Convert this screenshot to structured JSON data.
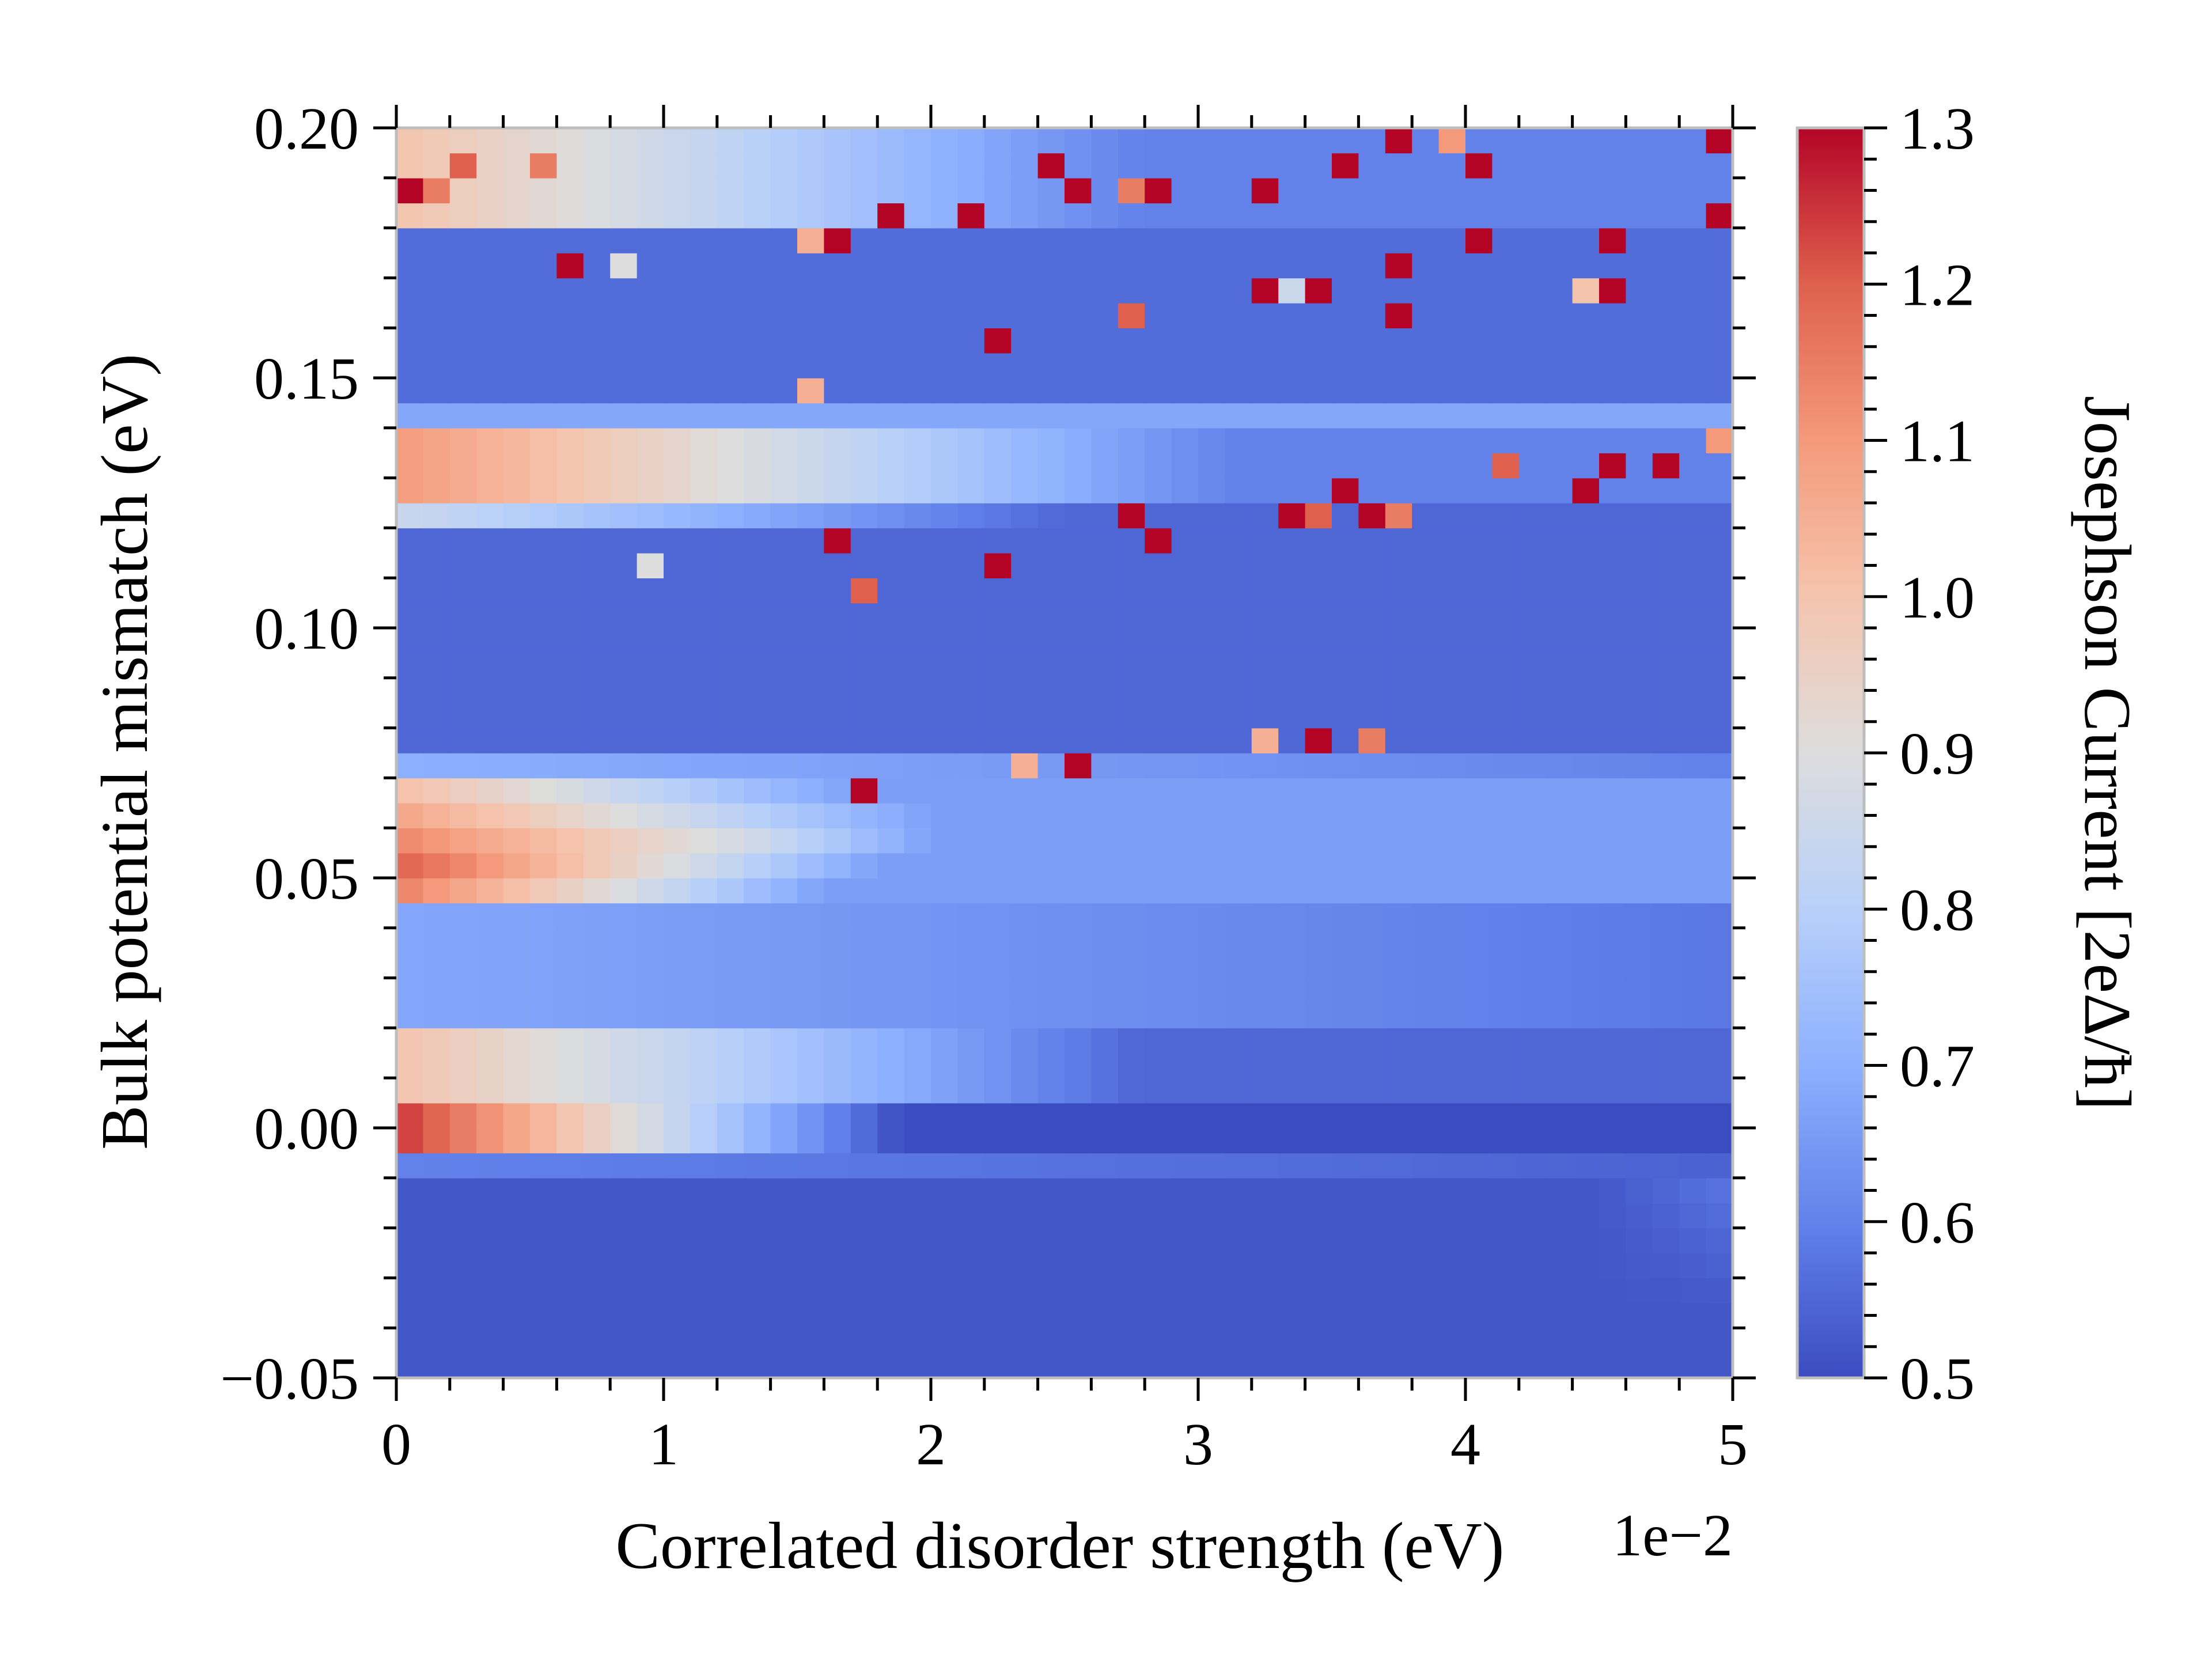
{
  "chart_data": {
    "type": "heatmap",
    "xlabel": "Correlated disorder strength (eV)",
    "x_offset_label": "1e−2",
    "ylabel": "Bulk potential mismatch (eV)",
    "colorbar_label": "Josephson Current [2eΔ/ħ]",
    "colormap": "coolwarm",
    "xlim": [
      0,
      5
    ],
    "ylim": [
      -0.05,
      0.2
    ],
    "clim": [
      0.5,
      1.3
    ],
    "x_ticks": [
      0,
      1,
      2,
      3,
      4,
      5
    ],
    "x_tick_labels": [
      "0",
      "1",
      "2",
      "3",
      "4",
      "5"
    ],
    "y_ticks": [
      -0.05,
      0.0,
      0.05,
      0.1,
      0.15,
      0.2
    ],
    "y_tick_labels": [
      "−0.05",
      "0.00",
      "0.05",
      "0.10",
      "0.15",
      "0.20"
    ],
    "colorbar_ticks": [
      0.5,
      0.6,
      0.7,
      0.8,
      0.9,
      1.0,
      1.1,
      1.2,
      1.3
    ],
    "colorbar_tick_labels": [
      "0.5",
      "0.6",
      "0.7",
      "0.8",
      "0.9",
      "1.0",
      "1.1",
      "1.2",
      "1.3"
    ],
    "grid": false,
    "n_cols": 50,
    "n_rows": 50,
    "z_description": "Josephson current; smooth bands with high-current (red) stripes near y=0.00, y=0.05-0.07, y=0.12-0.14 and y=0.17-0.20, plus scattered high-current spikes at larger disorder",
    "bands": [
      {
        "y_range": [
          -0.05,
          -0.01
        ],
        "value": 0.52
      },
      {
        "y_range": [
          0.0,
          0.005
        ],
        "value_at_x0": 1.3,
        "decay": "fades to 0.55 by x=2.5"
      },
      {
        "y_range": [
          0.005,
          0.02
        ],
        "value_at_x0": 0.95,
        "decay": "fades to 0.6 by x=3"
      },
      {
        "y_range": [
          0.02,
          0.045
        ],
        "value": 0.68
      },
      {
        "y_range": [
          0.045,
          0.075
        ],
        "value_at_x0": 1.2,
        "ridge": "shifts upward with x, fades by x=3"
      },
      {
        "y_range": [
          0.075,
          0.12
        ],
        "value": 0.55
      },
      {
        "y_range": [
          0.12,
          0.14
        ],
        "value_at_x0": 1.2,
        "decay": "fades to 0.65 by x=3"
      },
      {
        "y_range": [
          0.14,
          0.18
        ],
        "value": 0.57
      },
      {
        "y_range": [
          0.18,
          0.2
        ],
        "value_at_x0": 1.1,
        "decay": "fades to 0.65"
      }
    ],
    "spikes": [
      {
        "x": 0.02,
        "y": 0.187,
        "z": 1.3
      },
      {
        "x": 0.1,
        "y": 0.187,
        "z": 1.15
      },
      {
        "x": 0.3,
        "y": 0.193,
        "z": 1.2
      },
      {
        "x": 0.5,
        "y": 0.193,
        "z": 1.15
      },
      {
        "x": 1.5,
        "y": 0.177,
        "z": 1.3
      },
      {
        "x": 1.55,
        "y": 0.177,
        "z": 1.05
      },
      {
        "x": 1.65,
        "y": 0.177,
        "z": 1.3
      },
      {
        "x": 1.85,
        "y": 0.182,
        "z": 1.3
      },
      {
        "x": 2.1,
        "y": 0.182,
        "z": 1.3
      },
      {
        "x": 2.45,
        "y": 0.193,
        "z": 1.3
      },
      {
        "x": 2.55,
        "y": 0.187,
        "z": 1.3
      },
      {
        "x": 2.7,
        "y": 0.187,
        "z": 1.15
      },
      {
        "x": 2.9,
        "y": 0.187,
        "z": 1.3
      },
      {
        "x": 3.2,
        "y": 0.187,
        "z": 1.3
      },
      {
        "x": 3.5,
        "y": 0.193,
        "z": 1.3
      },
      {
        "x": 3.7,
        "y": 0.198,
        "z": 1.3
      },
      {
        "x": 3.95,
        "y": 0.198,
        "z": 1.1
      },
      {
        "x": 4.05,
        "y": 0.193,
        "z": 1.3
      },
      {
        "x": 4.1,
        "y": 0.177,
        "z": 1.3
      },
      {
        "x": 4.5,
        "y": 0.177,
        "z": 1.3
      },
      {
        "x": 4.9,
        "y": 0.182,
        "z": 1.3
      },
      {
        "x": 4.95,
        "y": 0.198,
        "z": 1.3
      },
      {
        "x": 0.7,
        "y": 0.172,
        "z": 1.3
      },
      {
        "x": 0.85,
        "y": 0.172,
        "z": 0.9
      },
      {
        "x": 3.7,
        "y": 0.172,
        "z": 1.3
      },
      {
        "x": 3.25,
        "y": 0.167,
        "z": 1.3
      },
      {
        "x": 3.35,
        "y": 0.167,
        "z": 0.85
      },
      {
        "x": 3.45,
        "y": 0.167,
        "z": 1.3
      },
      {
        "x": 4.4,
        "y": 0.167,
        "z": 1.0
      },
      {
        "x": 4.5,
        "y": 0.167,
        "z": 1.2
      },
      {
        "x": 4.6,
        "y": 0.167,
        "z": 1.3
      },
      {
        "x": 2.7,
        "y": 0.162,
        "z": 1.3
      },
      {
        "x": 2.8,
        "y": 0.162,
        "z": 1.2
      },
      {
        "x": 3.8,
        "y": 0.162,
        "z": 1.3
      },
      {
        "x": 2.2,
        "y": 0.158,
        "z": 1.3
      },
      {
        "x": 1.5,
        "y": 0.145,
        "z": 1.05
      },
      {
        "x": 4.95,
        "y": 0.137,
        "z": 1.1
      },
      {
        "x": 4.15,
        "y": 0.132,
        "z": 1.2
      },
      {
        "x": 4.5,
        "y": 0.132,
        "z": 1.3
      },
      {
        "x": 4.8,
        "y": 0.132,
        "z": 1.3
      },
      {
        "x": 3.5,
        "y": 0.127,
        "z": 1.3
      },
      {
        "x": 4.4,
        "y": 0.127,
        "z": 1.3
      },
      {
        "x": 3.35,
        "y": 0.122,
        "z": 1.3
      },
      {
        "x": 3.45,
        "y": 0.122,
        "z": 1.2
      },
      {
        "x": 3.6,
        "y": 0.122,
        "z": 1.3
      },
      {
        "x": 3.8,
        "y": 0.122,
        "z": 1.15
      },
      {
        "x": 2.8,
        "y": 0.122,
        "z": 1.3
      },
      {
        "x": 1.65,
        "y": 0.117,
        "z": 1.3
      },
      {
        "x": 2.9,
        "y": 0.117,
        "z": 1.3
      },
      {
        "x": 0.9,
        "y": 0.113,
        "z": 0.9
      },
      {
        "x": 2.3,
        "y": 0.113,
        "z": 1.3
      },
      {
        "x": 1.7,
        "y": 0.108,
        "z": 1.2
      },
      {
        "x": 3.3,
        "y": 0.078,
        "z": 1.05
      },
      {
        "x": 3.45,
        "y": 0.078,
        "z": 1.3
      },
      {
        "x": 3.65,
        "y": 0.078,
        "z": 1.15
      },
      {
        "x": 2.4,
        "y": 0.073,
        "z": 1.05
      },
      {
        "x": 2.55,
        "y": 0.073,
        "z": 1.3
      },
      {
        "x": 1.7,
        "y": 0.068,
        "z": 1.3
      }
    ]
  }
}
